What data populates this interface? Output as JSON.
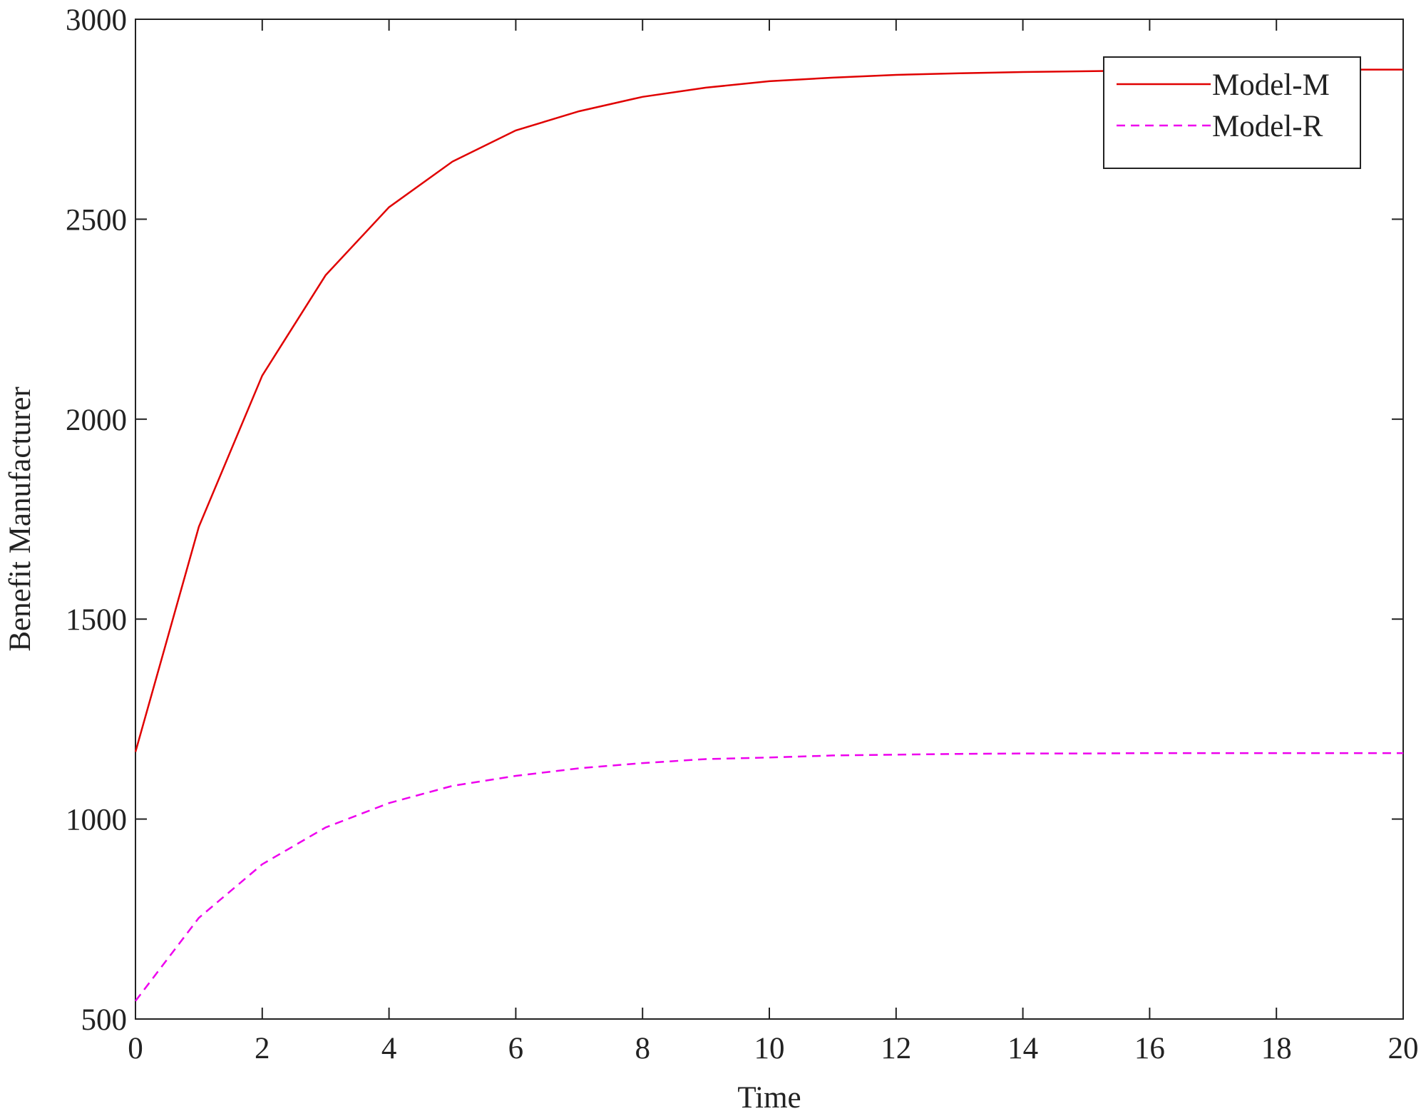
{
  "chart_data": {
    "type": "line",
    "xlabel": "Time",
    "ylabel": "Benefit Manufacturer",
    "x": [
      0,
      1,
      2,
      3,
      4,
      5,
      6,
      7,
      8,
      9,
      10,
      11,
      12,
      13,
      14,
      15,
      16,
      17,
      18,
      19,
      20
    ],
    "series": [
      {
        "name": "Model-M",
        "color": "#e00000",
        "linestyle": "solid",
        "values": [
          1168,
          1731,
          2109,
          2360,
          2530,
          2644,
          2722,
          2770,
          2806,
          2829,
          2845,
          2854,
          2861,
          2865,
          2868,
          2870,
          2872,
          2873,
          2873,
          2874,
          2874
        ]
      },
      {
        "name": "Model-R",
        "color": "#ee00ee",
        "linestyle": "dashed",
        "values": [
          545,
          753,
          887,
          979,
          1040,
          1083,
          1108,
          1127,
          1140,
          1150,
          1154,
          1159,
          1161,
          1163,
          1164,
          1164,
          1165,
          1165,
          1165,
          1165,
          1165
        ]
      }
    ],
    "xlim": [
      0,
      20
    ],
    "xticks": [
      0,
      2,
      4,
      6,
      8,
      10,
      12,
      14,
      16,
      18,
      20
    ],
    "ylim": [
      500,
      3000
    ],
    "yticks": [
      500,
      1000,
      1500,
      2000,
      2500,
      3000
    ],
    "grid": false,
    "legend": "upper right"
  }
}
